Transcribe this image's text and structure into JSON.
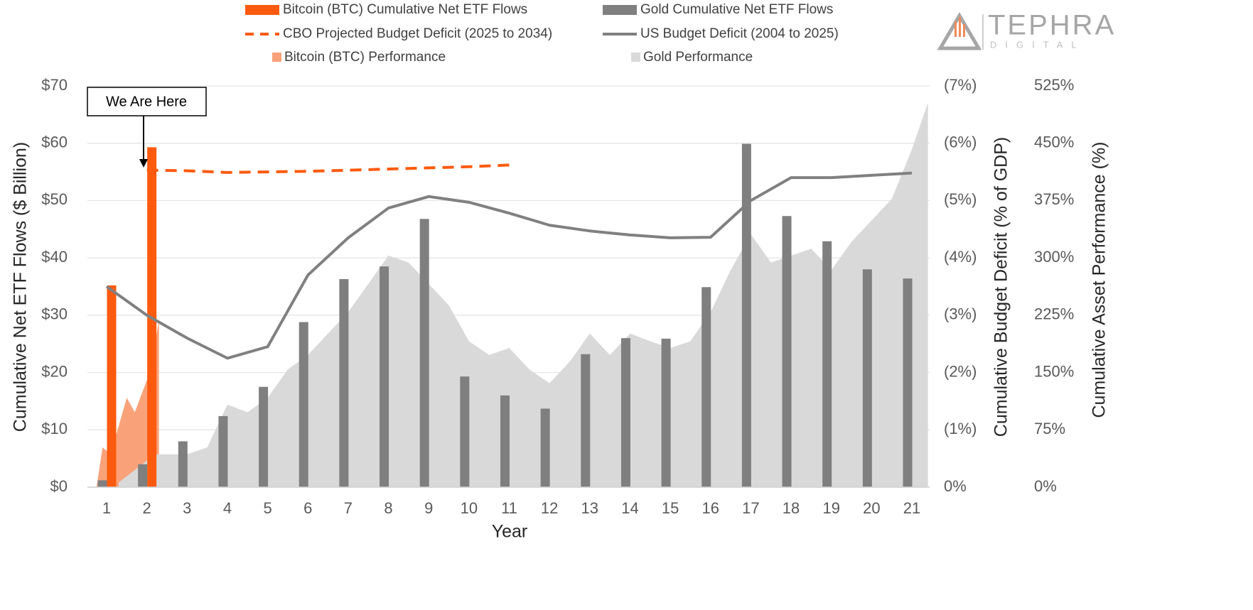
{
  "chart_data": {
    "type": "bar",
    "logo": {
      "name": "TEPHRA",
      "tagline": "DIGITAL"
    },
    "annotation": "We Are Here",
    "x_label": "Year",
    "y_label": "Cumulative Net ETF Flows ($ Billion)",
    "y2_label": "Cumulative Budget Deficit (% of GDP)",
    "y3_label": "Cumulative Asset Performance (%)",
    "categories": [
      "1",
      "2",
      "3",
      "4",
      "5",
      "6",
      "7",
      "8",
      "9",
      "10",
      "11",
      "12",
      "13",
      "14",
      "15",
      "16",
      "17",
      "18",
      "19",
      "20",
      "21"
    ],
    "ylim": [
      0,
      70
    ],
    "yticks": [
      {
        "value": 0,
        "label": "$0"
      },
      {
        "value": 10,
        "label": "$10"
      },
      {
        "value": 20,
        "label": "$20"
      },
      {
        "value": 30,
        "label": "$30"
      },
      {
        "value": 40,
        "label": "$40"
      },
      {
        "value": 50,
        "label": "$50"
      },
      {
        "value": 60,
        "label": "$60"
      },
      {
        "value": 70,
        "label": "$70"
      }
    ],
    "y2lim": [
      0,
      7
    ],
    "y2ticks": [
      {
        "value": 0,
        "label": "0%"
      },
      {
        "value": 1,
        "label": "(1%)"
      },
      {
        "value": 2,
        "label": "(2%)"
      },
      {
        "value": 3,
        "label": "(3%)"
      },
      {
        "value": 4,
        "label": "(4%)"
      },
      {
        "value": 5,
        "label": "(5%)"
      },
      {
        "value": 6,
        "label": "(6%)"
      },
      {
        "value": 7,
        "label": "(7%)"
      }
    ],
    "y3lim": [
      0,
      525
    ],
    "y3ticks": [
      {
        "value": 0,
        "label": "0%"
      },
      {
        "value": 75,
        "label": "75%"
      },
      {
        "value": 150,
        "label": "150%"
      },
      {
        "value": 225,
        "label": "225%"
      },
      {
        "value": 300,
        "label": "300%"
      },
      {
        "value": 375,
        "label": "375%"
      },
      {
        "value": 450,
        "label": "450%"
      },
      {
        "value": 525,
        "label": "525%"
      }
    ],
    "grid": true,
    "series": [
      {
        "name": "Bitcoin (BTC) Cumulative Net ETF Flows",
        "type": "bar",
        "axis": "y",
        "color": "#fc5a0e",
        "values": [
          35.2,
          59.3,
          null,
          null,
          null,
          null,
          null,
          null,
          null,
          null,
          null,
          null,
          null,
          null,
          null,
          null,
          null,
          null,
          null,
          null,
          null
        ]
      },
      {
        "name": "Gold Cumulative Net ETF Flows",
        "type": "bar",
        "axis": "y",
        "color": "#7f7f7f",
        "values": [
          1.2,
          4,
          8,
          12.4,
          17.5,
          28.8,
          36.3,
          38.5,
          46.8,
          19.3,
          16,
          13.7,
          23.2,
          26,
          25.9,
          34.9,
          59.9,
          47.3,
          42.9,
          38,
          36.4
        ]
      },
      {
        "name": "CBO Projected Budget Deficit (2025 to 2034)",
        "type": "line",
        "style": "dashed",
        "axis": "y2",
        "color": "#fc5a0e",
        "values": [
          null,
          5.53,
          5.52,
          5.49,
          5.5,
          5.51,
          5.53,
          5.55,
          5.57,
          5.59,
          5.62,
          null,
          null,
          null,
          null,
          null,
          null,
          null,
          null,
          null,
          null
        ]
      },
      {
        "name": "US Budget Deficit (2004 to 2025)",
        "type": "line",
        "style": "solid",
        "axis": "y2",
        "color": "#808080",
        "values": [
          3.5,
          3.0,
          2.6,
          2.25,
          2.45,
          3.7,
          4.35,
          4.87,
          5.07,
          4.97,
          4.78,
          4.57,
          4.47,
          4.4,
          4.35,
          4.36,
          5.0,
          5.4,
          5.4,
          5.44,
          5.48
        ]
      },
      {
        "name": "Bitcoin (BTC) Performance",
        "type": "area",
        "axis": "y3",
        "color": "#f9a27a",
        "x": [
          0.75,
          0.9,
          1.1,
          1.3,
          1.5,
          1.7,
          1.9,
          2.1,
          2.3
        ],
        "values": [
          0,
          52,
          43,
          80,
          117,
          98,
          126,
          154,
          219
        ]
      },
      {
        "name": "Gold Performance",
        "type": "area",
        "axis": "y3",
        "color": "#d9d9d9",
        "x": [
          1.3,
          2.2,
          3,
          3.5,
          4,
          4.5,
          5,
          5.5,
          6,
          6.5,
          7,
          7.5,
          8,
          8.5,
          9,
          9.5,
          10,
          10.5,
          11,
          11.5,
          12,
          12.5,
          13,
          13.5,
          14,
          14.5,
          15,
          15.5,
          16,
          16.5,
          17,
          17.5,
          18,
          18.5,
          19,
          19.5,
          20,
          20.5,
          21,
          21.4
        ],
        "values": [
          6,
          43,
          43,
          52,
          108,
          98,
          117,
          154,
          173,
          201,
          229,
          266,
          303,
          294,
          266,
          238,
          191,
          173,
          182,
          154,
          136,
          164,
          201,
          173,
          201,
          191,
          182,
          191,
          229,
          284,
          331,
          294,
          303,
          312,
          284,
          321,
          349,
          377,
          442,
          503
        ]
      }
    ]
  }
}
